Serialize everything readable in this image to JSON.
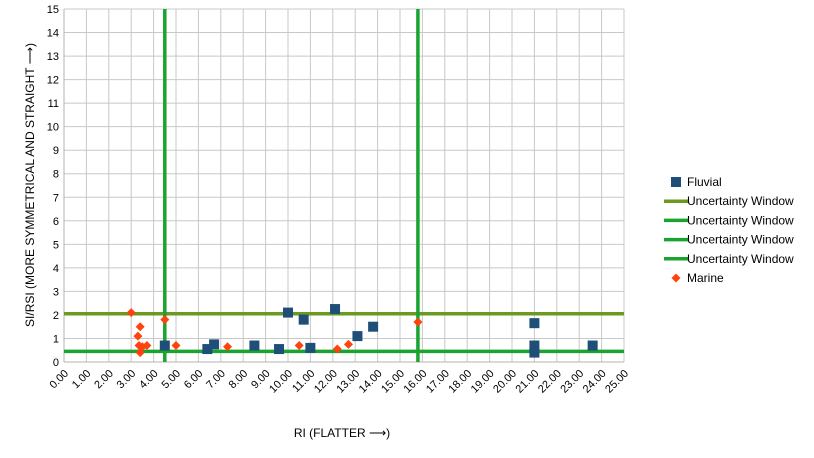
{
  "chart_data": {
    "type": "scatter",
    "xlabel": "RI (FLATTER ⟶)",
    "ylabel": "SI/RSI (MORE SYMMETRICAL AND STRAIGHT ⟶)",
    "xlim": [
      0,
      25
    ],
    "ylim": [
      0,
      15
    ],
    "x_ticks": [
      "0.00",
      "1.00",
      "2.00",
      "3.00",
      "4.00",
      "5.00",
      "6.00",
      "7.00",
      "8.00",
      "9.00",
      "10.00",
      "11.00",
      "12.00",
      "13.00",
      "14.00",
      "15.00",
      "16.00",
      "17.00",
      "18.00",
      "19.00",
      "20.00",
      "21.00",
      "22.00",
      "23.00",
      "24.00",
      "25.00"
    ],
    "y_ticks": [
      "0",
      "1",
      "2",
      "3",
      "4",
      "5",
      "6",
      "7",
      "8",
      "9",
      "10",
      "11",
      "12",
      "13",
      "14",
      "15"
    ],
    "grid": true,
    "legend_position": "right",
    "series": [
      {
        "name": "Fluvial",
        "kind": "points",
        "marker": "square",
        "color": "#1f4e79",
        "points": [
          {
            "x": 4.5,
            "y": 0.7
          },
          {
            "x": 6.4,
            "y": 0.55
          },
          {
            "x": 6.7,
            "y": 0.75
          },
          {
            "x": 8.5,
            "y": 0.7
          },
          {
            "x": 9.6,
            "y": 0.55
          },
          {
            "x": 10.0,
            "y": 2.1
          },
          {
            "x": 10.7,
            "y": 1.8
          },
          {
            "x": 11.0,
            "y": 0.6
          },
          {
            "x": 12.1,
            "y": 2.25
          },
          {
            "x": 13.1,
            "y": 1.1
          },
          {
            "x": 13.8,
            "y": 1.5
          },
          {
            "x": 21.0,
            "y": 1.65
          },
          {
            "x": 21.0,
            "y": 0.7
          },
          {
            "x": 21.0,
            "y": 0.4
          },
          {
            "x": 23.6,
            "y": 0.7
          }
        ]
      },
      {
        "name": "Uncertainty Window",
        "kind": "line",
        "color": "#6a9a1f",
        "points": [
          {
            "x": 0,
            "y": 2.05
          },
          {
            "x": 25,
            "y": 2.05
          }
        ]
      },
      {
        "name": "Uncertainty Window",
        "kind": "line",
        "color": "#1aa32e",
        "points": [
          {
            "x": 0,
            "y": 0.45
          },
          {
            "x": 25,
            "y": 0.45
          }
        ]
      },
      {
        "name": "Uncertainty Window",
        "kind": "line",
        "color": "#1aa32e",
        "points": [
          {
            "x": 4.5,
            "y": 0
          },
          {
            "x": 4.5,
            "y": 15
          }
        ]
      },
      {
        "name": "Uncertainty Window",
        "kind": "line",
        "color": "#1aa32e",
        "points": [
          {
            "x": 15.8,
            "y": 0
          },
          {
            "x": 15.8,
            "y": 15
          }
        ]
      },
      {
        "name": "Marine",
        "kind": "points",
        "marker": "diamond",
        "color": "#ff420e",
        "points": [
          {
            "x": 3.0,
            "y": 2.1
          },
          {
            "x": 3.3,
            "y": 1.1
          },
          {
            "x": 3.4,
            "y": 1.5
          },
          {
            "x": 3.35,
            "y": 0.7
          },
          {
            "x": 3.4,
            "y": 0.4
          },
          {
            "x": 3.5,
            "y": 0.65
          },
          {
            "x": 3.7,
            "y": 0.7
          },
          {
            "x": 4.5,
            "y": 1.8
          },
          {
            "x": 5.0,
            "y": 0.7
          },
          {
            "x": 7.3,
            "y": 0.65
          },
          {
            "x": 10.5,
            "y": 0.7
          },
          {
            "x": 12.2,
            "y": 0.55
          },
          {
            "x": 12.7,
            "y": 0.75
          },
          {
            "x": 15.8,
            "y": 1.7
          }
        ]
      }
    ]
  }
}
